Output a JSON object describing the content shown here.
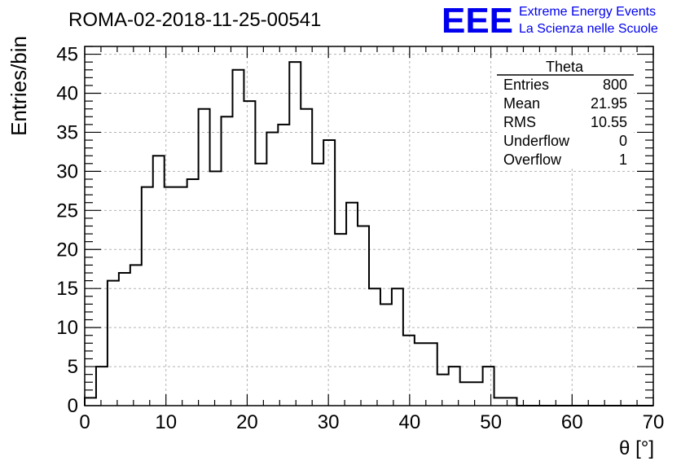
{
  "title": "ROMA-02-2018-11-25-00541",
  "logo": {
    "mark": "EEE",
    "line1": "Extreme Energy Events",
    "line2": "La Scienza nelle Scuole",
    "color": "#0000ee"
  },
  "stats": {
    "name": "Theta",
    "rows": [
      {
        "label": "Entries",
        "value": "800"
      },
      {
        "label": "Mean",
        "value": "21.95"
      },
      {
        "label": "RMS",
        "value": "10.55"
      },
      {
        "label": "Underflow",
        "value": "0"
      },
      {
        "label": "Overflow",
        "value": "1"
      }
    ]
  },
  "chart_data": {
    "type": "histogram",
    "xlabel": "θ [°]",
    "ylabel": "Entries/bin",
    "xlim": [
      0,
      70
    ],
    "ylim": [
      0,
      46
    ],
    "bin_width": 1.4,
    "x_ticks": [
      0,
      10,
      20,
      30,
      40,
      50,
      60,
      70
    ],
    "y_ticks": [
      0,
      5,
      10,
      15,
      20,
      25,
      30,
      35,
      40,
      45
    ],
    "grid": true,
    "values": [
      1,
      5,
      16,
      17,
      18,
      28,
      32,
      28,
      28,
      29,
      38,
      30,
      37,
      43,
      39,
      31,
      35,
      36,
      44,
      38,
      31,
      34,
      22,
      26,
      23,
      15,
      13,
      15,
      9,
      8,
      8,
      4,
      5,
      3,
      3,
      5,
      1,
      1,
      0,
      0,
      0,
      0,
      0,
      0,
      0,
      0,
      0,
      0,
      0,
      0
    ],
    "line_color": "#000000",
    "grid_color": "#b4b4b4"
  }
}
